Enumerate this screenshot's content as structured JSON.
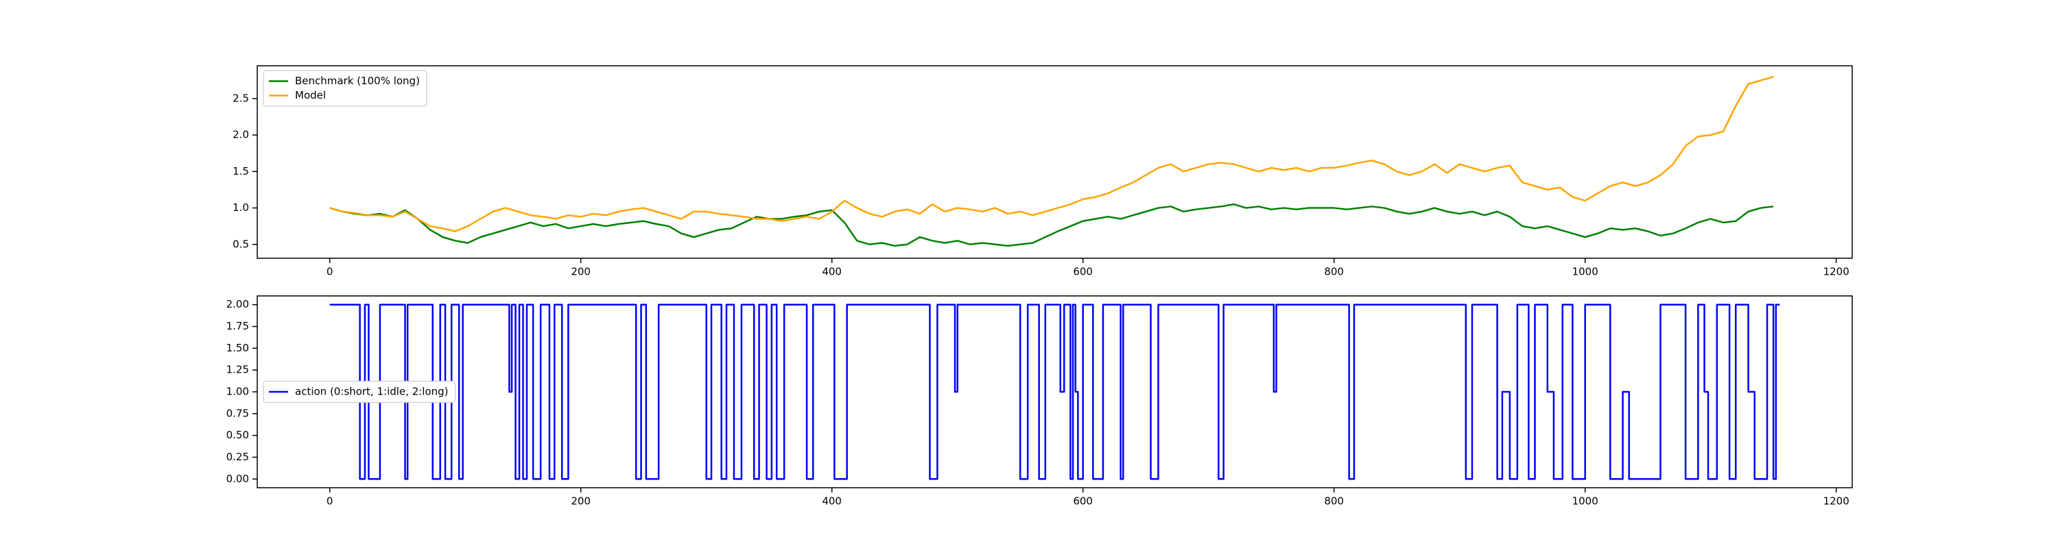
{
  "chart_data": [
    {
      "type": "line",
      "x": [
        0,
        10,
        20,
        30,
        40,
        50,
        60,
        70,
        80,
        90,
        100,
        110,
        120,
        130,
        140,
        150,
        160,
        170,
        180,
        190,
        200,
        210,
        220,
        230,
        240,
        250,
        260,
        270,
        280,
        290,
        300,
        310,
        320,
        330,
        340,
        350,
        360,
        370,
        380,
        390,
        400,
        410,
        420,
        430,
        440,
        450,
        460,
        470,
        480,
        490,
        500,
        510,
        520,
        530,
        540,
        550,
        560,
        570,
        580,
        590,
        600,
        610,
        620,
        630,
        640,
        650,
        660,
        670,
        680,
        690,
        700,
        710,
        720,
        730,
        740,
        750,
        760,
        770,
        780,
        790,
        800,
        810,
        820,
        830,
        840,
        850,
        860,
        870,
        880,
        890,
        900,
        910,
        920,
        930,
        940,
        950,
        960,
        970,
        980,
        990,
        1000,
        1010,
        1020,
        1030,
        1040,
        1050,
        1060,
        1070,
        1080,
        1090,
        1100,
        1110,
        1120,
        1130,
        1140,
        1150
      ],
      "series": [
        {
          "name": "Benchmark (100% long)",
          "color": "#008000",
          "values": [
            1.0,
            0.95,
            0.92,
            0.9,
            0.92,
            0.88,
            0.97,
            0.85,
            0.7,
            0.6,
            0.55,
            0.52,
            0.6,
            0.65,
            0.7,
            0.75,
            0.8,
            0.75,
            0.78,
            0.72,
            0.75,
            0.78,
            0.75,
            0.78,
            0.8,
            0.82,
            0.78,
            0.75,
            0.65,
            0.6,
            0.65,
            0.7,
            0.72,
            0.8,
            0.88,
            0.85,
            0.85,
            0.88,
            0.9,
            0.95,
            0.97,
            0.8,
            0.55,
            0.5,
            0.52,
            0.48,
            0.5,
            0.6,
            0.55,
            0.52,
            0.55,
            0.5,
            0.52,
            0.5,
            0.48,
            0.5,
            0.52,
            0.6,
            0.68,
            0.75,
            0.82,
            0.85,
            0.88,
            0.85,
            0.9,
            0.95,
            1.0,
            1.02,
            0.95,
            0.98,
            1.0,
            1.02,
            1.05,
            1.0,
            1.02,
            0.98,
            1.0,
            0.98,
            1.0,
            1.0,
            1.0,
            0.98,
            1.0,
            1.02,
            1.0,
            0.95,
            0.92,
            0.95,
            1.0,
            0.95,
            0.92,
            0.95,
            0.9,
            0.95,
            0.88,
            0.75,
            0.72,
            0.75,
            0.7,
            0.65,
            0.6,
            0.65,
            0.72,
            0.7,
            0.72,
            0.68,
            0.62,
            0.65,
            0.72,
            0.8,
            0.85,
            0.8,
            0.82,
            0.95,
            1.0,
            1.02
          ]
        },
        {
          "name": "Model",
          "color": "#ffa500",
          "values": [
            1.0,
            0.95,
            0.93,
            0.9,
            0.9,
            0.88,
            0.95,
            0.85,
            0.75,
            0.72,
            0.68,
            0.75,
            0.85,
            0.95,
            1.0,
            0.95,
            0.9,
            0.88,
            0.85,
            0.9,
            0.88,
            0.92,
            0.9,
            0.95,
            0.98,
            1.0,
            0.95,
            0.9,
            0.85,
            0.95,
            0.95,
            0.92,
            0.9,
            0.88,
            0.85,
            0.85,
            0.82,
            0.85,
            0.88,
            0.85,
            0.95,
            1.1,
            1.0,
            0.92,
            0.88,
            0.95,
            0.98,
            0.92,
            1.05,
            0.95,
            1.0,
            0.98,
            0.95,
            1.0,
            0.92,
            0.95,
            0.9,
            0.95,
            1.0,
            1.05,
            1.12,
            1.15,
            1.2,
            1.28,
            1.35,
            1.45,
            1.55,
            1.6,
            1.5,
            1.55,
            1.6,
            1.62,
            1.6,
            1.55,
            1.5,
            1.55,
            1.52,
            1.55,
            1.5,
            1.55,
            1.55,
            1.58,
            1.62,
            1.65,
            1.6,
            1.5,
            1.45,
            1.5,
            1.6,
            1.48,
            1.6,
            1.55,
            1.5,
            1.55,
            1.58,
            1.35,
            1.3,
            1.25,
            1.28,
            1.15,
            1.1,
            1.2,
            1.3,
            1.35,
            1.3,
            1.35,
            1.45,
            1.6,
            1.85,
            1.98,
            2.0,
            2.05,
            2.4,
            2.7,
            2.75,
            2.8
          ]
        }
      ],
      "xlim": [
        -57.75,
        1212.75
      ],
      "xticks": [
        0,
        200,
        400,
        600,
        800,
        1000,
        1200
      ],
      "ylim": [
        0.31,
        2.95
      ],
      "yticks": [
        0.5,
        {
          "value": 1,
          "label": "1.0"
        },
        1.5,
        {
          "value": 2,
          "label": "2.0"
        },
        2.5
      ],
      "legend": "upper left"
    },
    {
      "type": "line",
      "x": [
        0,
        24,
        24,
        28,
        28,
        31,
        31,
        40,
        40,
        60,
        60,
        62,
        62,
        82,
        82,
        88,
        88,
        92,
        92,
        97,
        97,
        103,
        103,
        106,
        106,
        143,
        143,
        145,
        145,
        148,
        148,
        151,
        151,
        154,
        154,
        157,
        157,
        162,
        162,
        168,
        168,
        175,
        175,
        179,
        179,
        185,
        185,
        190,
        190,
        244,
        244,
        248,
        248,
        252,
        252,
        262,
        262,
        300,
        300,
        304,
        304,
        312,
        312,
        316,
        316,
        322,
        322,
        328,
        328,
        338,
        338,
        342,
        342,
        348,
        348,
        352,
        352,
        356,
        356,
        362,
        362,
        380,
        380,
        385,
        385,
        402,
        402,
        412,
        412,
        478,
        478,
        484,
        484,
        498,
        498,
        500,
        500,
        550,
        550,
        556,
        556,
        565,
        565,
        570,
        570,
        582,
        582,
        585,
        585,
        590,
        590,
        592,
        592,
        594,
        594,
        596,
        596,
        600,
        600,
        608,
        608,
        616,
        616,
        630,
        630,
        632,
        632,
        654,
        654,
        660,
        660,
        708,
        708,
        712,
        712,
        752,
        752,
        754,
        754,
        812,
        812,
        816,
        816,
        905,
        905,
        910,
        910,
        930,
        930,
        934,
        934,
        940,
        940,
        946,
        946,
        955,
        955,
        960,
        960,
        970,
        970,
        975,
        975,
        982,
        982,
        990,
        990,
        1000,
        1000,
        1020,
        1020,
        1030,
        1030,
        1035,
        1035,
        1060,
        1060,
        1080,
        1080,
        1090,
        1090,
        1095,
        1095,
        1098,
        1098,
        1105,
        1105,
        1115,
        1115,
        1120,
        1120,
        1130,
        1130,
        1135,
        1135,
        1145,
        1145,
        1150,
        1150,
        1152,
        1152,
        1155
      ],
      "series": [
        {
          "name": "action (0:short, 1:idle, 2:long)",
          "color": "#0000ff",
          "values": [
            2,
            2,
            0,
            0,
            2,
            2,
            0,
            0,
            2,
            2,
            0,
            0,
            2,
            2,
            0,
            0,
            2,
            2,
            0,
            0,
            2,
            2,
            0,
            0,
            2,
            2,
            1,
            1,
            2,
            2,
            0,
            0,
            2,
            2,
            0,
            0,
            2,
            2,
            0,
            0,
            2,
            2,
            0,
            0,
            2,
            2,
            0,
            0,
            2,
            2,
            0,
            0,
            2,
            2,
            0,
            0,
            2,
            2,
            0,
            0,
            2,
            2,
            0,
            0,
            2,
            2,
            0,
            0,
            2,
            2,
            0,
            0,
            2,
            2,
            0,
            0,
            2,
            2,
            0,
            0,
            2,
            2,
            0,
            0,
            2,
            2,
            0,
            0,
            2,
            2,
            0,
            0,
            2,
            2,
            1,
            1,
            2,
            2,
            0,
            0,
            2,
            2,
            0,
            0,
            2,
            2,
            1,
            1,
            2,
            2,
            0,
            0,
            2,
            2,
            1,
            1,
            0,
            0,
            2,
            2,
            0,
            0,
            2,
            2,
            0,
            0,
            2,
            2,
            0,
            0,
            2,
            2,
            0,
            0,
            2,
            2,
            1,
            1,
            2,
            2,
            0,
            0,
            2,
            2,
            0,
            0,
            2,
            2,
            0,
            0,
            1,
            1,
            0,
            0,
            2,
            2,
            0,
            0,
            2,
            2,
            1,
            1,
            0,
            0,
            2,
            2,
            0,
            0,
            2,
            2,
            0,
            0,
            1,
            1,
            0,
            0,
            2,
            2,
            0,
            0,
            2,
            2,
            1,
            1,
            0,
            0,
            2,
            2,
            0,
            0,
            2,
            2,
            1,
            1,
            0,
            0,
            2,
            2,
            0,
            0,
            2,
            2
          ]
        }
      ],
      "xlim": [
        -57.75,
        1212.75
      ],
      "xticks": [
        0,
        200,
        400,
        600,
        800,
        1000,
        1200
      ],
      "ylim": [
        -0.1,
        2.1
      ],
      "yticks": [
        {
          "value": 0,
          "label": "0.00"
        },
        {
          "value": 0.25,
          "label": "0.25"
        },
        {
          "value": 0.5,
          "label": "0.50"
        },
        {
          "value": 0.75,
          "label": "0.75"
        },
        {
          "value": 1,
          "label": "1.00"
        },
        {
          "value": 1.25,
          "label": "1.25"
        },
        {
          "value": 1.5,
          "label": "1.50"
        },
        {
          "value": 1.75,
          "label": "1.75"
        },
        {
          "value": 2,
          "label": "2.00"
        }
      ],
      "legend": "center left"
    }
  ]
}
